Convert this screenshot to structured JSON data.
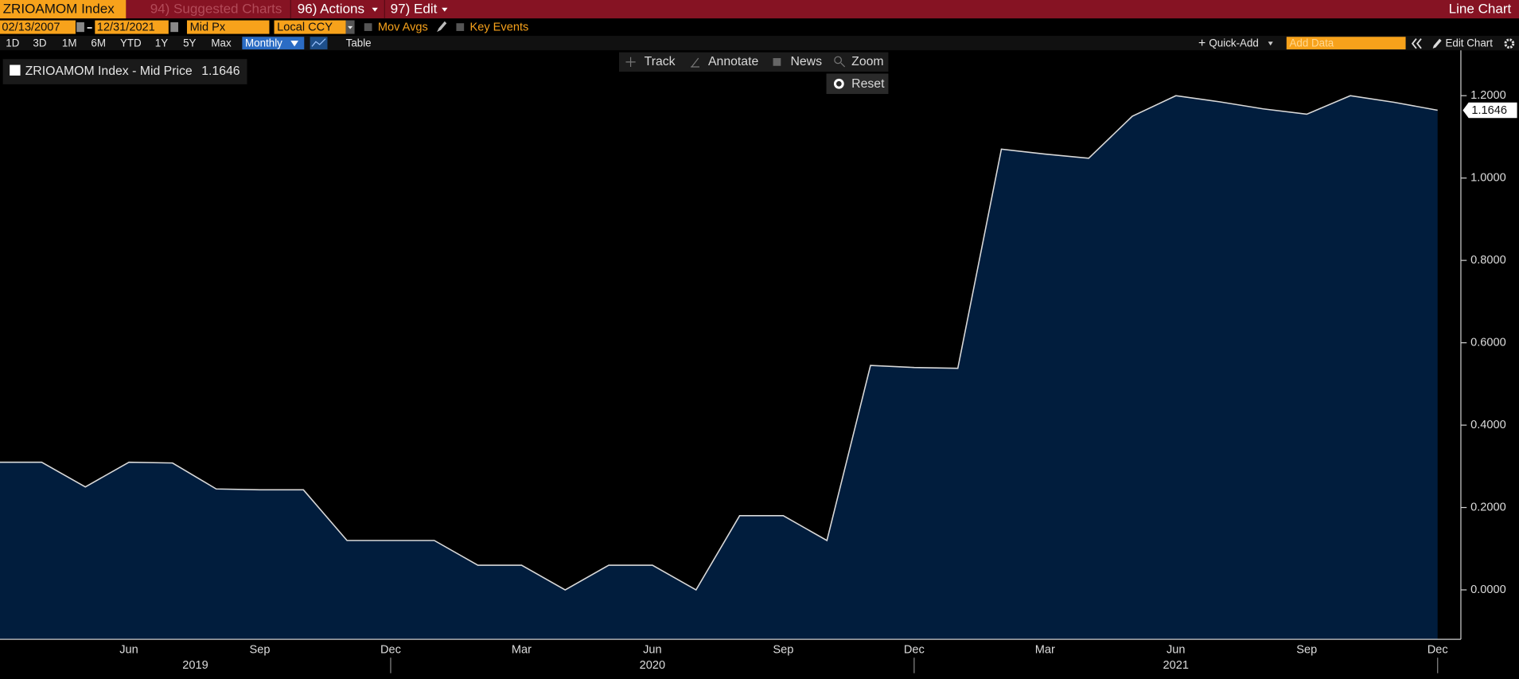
{
  "header": {
    "ticker": "ZRIOAMOM Index",
    "menus": [
      "94) Suggested Charts",
      "96) Actions",
      "97) Edit"
    ],
    "chart_kind": "Line Chart"
  },
  "controls": {
    "start_date": "02/13/2007",
    "end_date": "12/31/2021",
    "price_field": "Mid Px",
    "currency": "Local CCY",
    "options": [
      "Mov Avgs",
      "Key Events"
    ]
  },
  "ranges": [
    "1D",
    "3D",
    "1M",
    "6M",
    "YTD",
    "1Y",
    "5Y",
    "Max"
  ],
  "frequency": "Monthly",
  "view_button": "Table",
  "right_tools": [
    "Quick-Add",
    "Add Data",
    "Edit Chart"
  ],
  "chart_tools": [
    "Track",
    "Annotate",
    "News",
    "Zoom"
  ],
  "reset": "Reset",
  "chart_data": {
    "type": "area",
    "categories": [
      null,
      null,
      null,
      "Jun",
      null,
      null,
      "Sep",
      null,
      null,
      "Dec",
      null,
      null,
      "Mar",
      null,
      null,
      "Jun",
      null,
      null,
      "Sep",
      null,
      null,
      "Dec",
      null,
      null,
      "Mar",
      null,
      null,
      "Jun",
      null,
      null,
      "Sep",
      null,
      null,
      "Dec"
    ],
    "years": [
      "2019",
      "2020",
      "2021"
    ],
    "series": [
      {
        "name": "ZRIOAMOM Index - Mid Price",
        "color": "#d9d9d9",
        "fill": "#011d3d",
        "values": [
          0.31,
          0.31,
          0.25,
          0.31,
          0.308,
          0.245,
          0.243,
          0.243,
          0.12,
          0.12,
          0.12,
          0.06,
          0.06,
          0.0,
          0.06,
          0.06,
          0.0,
          0.18,
          0.18,
          0.12,
          0.545,
          0.54,
          0.538,
          1.07,
          1.058,
          1.048,
          1.15,
          1.2,
          1.185,
          1.168,
          1.155,
          1.2,
          1.184,
          1.1646
        ]
      }
    ],
    "ylim": [
      -0.12,
      1.31
    ],
    "yticks": [
      {
        "value": 0,
        "label": "0.0000"
      },
      {
        "value": 0.2,
        "label": "0.2000"
      },
      {
        "value": 0.4,
        "label": "0.4000"
      },
      {
        "value": 0.6,
        "label": "0.6000"
      },
      {
        "value": 0.8,
        "label": "0.8000"
      },
      {
        "value": 1.0,
        "label": "1.0000"
      },
      {
        "value": 1.2,
        "label": "1.2000"
      }
    ]
  }
}
